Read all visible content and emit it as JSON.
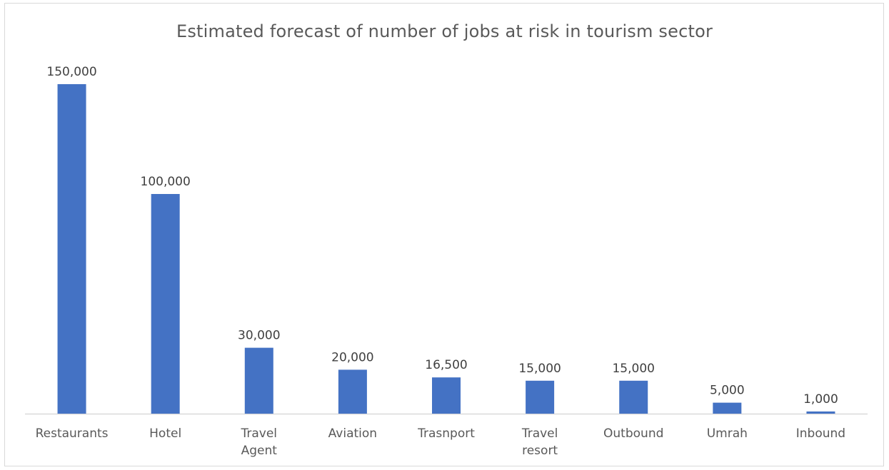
{
  "chart_data": {
    "type": "bar",
    "title": "Estimated forecast of number of jobs at risk in tourism sector",
    "categories": [
      [
        "Restaurants"
      ],
      [
        "Hotel"
      ],
      [
        "Travel",
        "Agent"
      ],
      [
        "Aviation"
      ],
      [
        "Trasnport"
      ],
      [
        "Travel",
        "resort"
      ],
      [
        "Outbound"
      ],
      [
        "Umrah"
      ],
      [
        "Inbound"
      ]
    ],
    "values": [
      150000,
      100000,
      30000,
      20000,
      16500,
      15000,
      15000,
      5000,
      1000
    ],
    "value_labels": [
      "150,000",
      "100,000",
      "30,000",
      "20,000",
      "16,500",
      "15,000",
      "15,000",
      "5,000",
      "1,000"
    ],
    "xlabel": "",
    "ylabel": "",
    "ylim": [
      0,
      150000
    ],
    "grid": false,
    "legend": "none",
    "bar_color": "#4472C4"
  }
}
